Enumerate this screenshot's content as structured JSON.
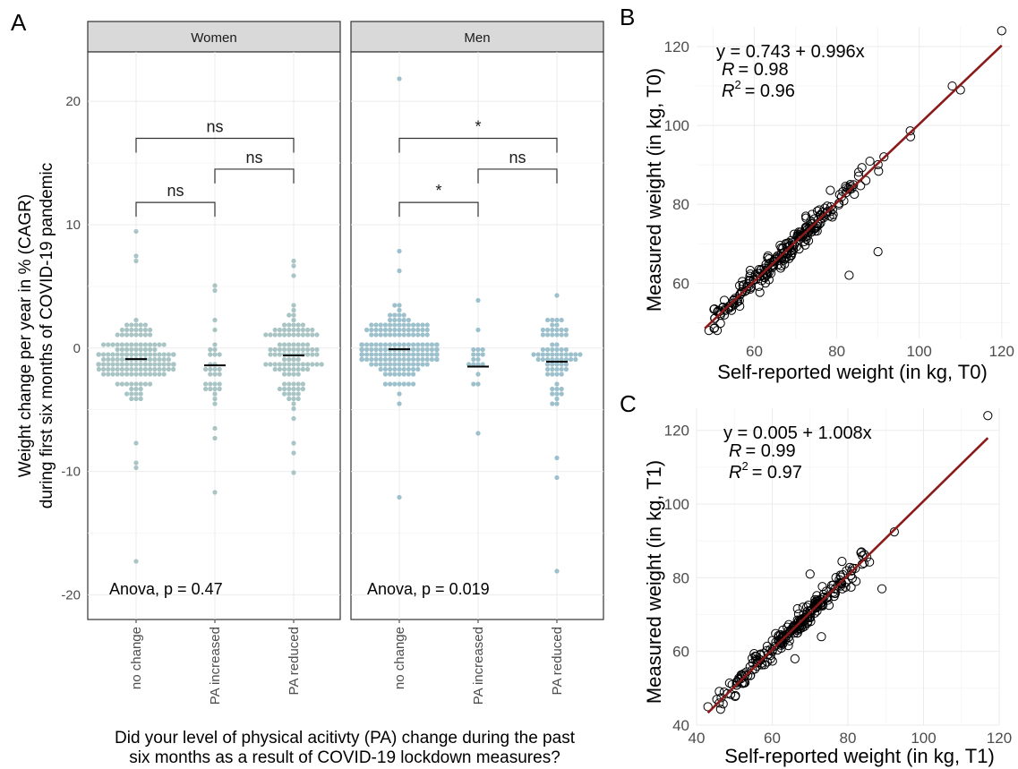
{
  "chart_data": [
    {
      "panel_label": "A",
      "type": "scatter",
      "subtype": "beeswarm",
      "facets": [
        "Women",
        "Men"
      ],
      "categories": [
        "no change",
        "PA increased",
        "PA reduced"
      ],
      "ylabel_line1": "Weight change per year in % (CAGR)",
      "ylabel_line2": "during first six months of COVID-19 pandemic",
      "xlabel_line1": "Did your level of physical acitivty (PA) change during the past",
      "xlabel_line2": "six months as a result of COVID-19 lockdown measures?",
      "ylim": [
        -22,
        24
      ],
      "yticks": [
        20,
        10,
        0,
        -10,
        -20
      ],
      "point_color": "#a9c4c4",
      "point_color_men": "#9cc0cc",
      "mean_line_color": "#000000",
      "panels": [
        {
          "facet": "Women",
          "anova": "Anova, p = 0.47",
          "means": [
            -0.9,
            -1.4,
            -0.6
          ],
          "brackets": [
            {
              "from": 0,
              "to": 2,
              "y": 17.0,
              "label": "ns"
            },
            {
              "from": 1,
              "to": 2,
              "y": 14.5,
              "label": "ns"
            },
            {
              "from": 0,
              "to": 1,
              "y": 11.8,
              "label": "ns"
            }
          ],
          "groups": [
            {
              "n": 150,
              "spread": 2.6,
              "outliers": [
                9.4,
                7.3,
                6.9,
                -7.9,
                -9.4,
                -9.8,
                -17.1
              ]
            },
            {
              "n": 28,
              "spread": 3.4,
              "outliers": [
                5.1,
                4.5,
                -6.6,
                -7.3,
                -11.5
              ]
            },
            {
              "n": 110,
              "spread": 3.3,
              "outliers": [
                6.9,
                6.5,
                6.0,
                -7.9,
                -8.6,
                -10.2
              ]
            }
          ]
        },
        {
          "facet": "Men",
          "anova": "Anova, p = 0.019",
          "means": [
            -0.1,
            -1.5,
            -1.1
          ],
          "brackets": [
            {
              "from": 0,
              "to": 2,
              "y": 17.0,
              "label": "*"
            },
            {
              "from": 1,
              "to": 2,
              "y": 14.5,
              "label": "ns"
            },
            {
              "from": 0,
              "to": 1,
              "y": 11.8,
              "label": "*"
            }
          ],
          "groups": [
            {
              "n": 190,
              "spread": 2.4,
              "outliers": [
                21.9,
                7.7,
                6.4,
                -12.0
              ]
            },
            {
              "n": 16,
              "spread": 2.0,
              "outliers": [
                3.9,
                -6.8
              ]
            },
            {
              "n": 70,
              "spread": 3.0,
              "outliers": [
                4.3,
                -9.1,
                -10.6,
                -18.0
              ]
            }
          ]
        }
      ]
    },
    {
      "panel_label": "B",
      "type": "scatter",
      "xlabel": "Self-reported weight (in kg, T0)",
      "ylabel": "Measured weight (in kg, T0)",
      "xlim": [
        46,
        122
      ],
      "ylim": [
        46,
        125
      ],
      "xticks": [
        60,
        80,
        100,
        120
      ],
      "yticks": [
        60,
        80,
        100,
        120
      ],
      "equation": "y = 0.743 + 0.996x",
      "r_symbol": "R",
      "r_value": "= 0.98",
      "r2_symbol": "R",
      "r2_sup": "2",
      "r2_value": "= 0.96",
      "intercept": 0.743,
      "slope": 0.996,
      "fit_range": [
        48,
        120
      ],
      "n": 240,
      "noise": 1.5,
      "outliers": [
        [
          83,
          62
        ],
        [
          90,
          68
        ],
        [
          120,
          124
        ],
        [
          108,
          110
        ],
        [
          110,
          109
        ],
        [
          49,
          48
        ],
        [
          51,
          48
        ]
      ],
      "line_color": "#8b1a1a",
      "seed": 7
    },
    {
      "panel_label": "C",
      "type": "scatter",
      "xlabel": "Self-reported weight (in kg, T1)",
      "ylabel": "Measured weight (in kg, T1)",
      "xlim": [
        40,
        120
      ],
      "ylim": [
        40,
        126
      ],
      "xticks": [
        40,
        60,
        80,
        100,
        120
      ],
      "yticks": [
        40,
        60,
        80,
        100,
        120
      ],
      "equation": "y = 0.005 + 1.008x",
      "r_symbol": "R",
      "r_value": "= 0.99",
      "r2_symbol": "R",
      "r2_sup": "2",
      "r2_value": "= 0.97",
      "intercept": 0.005,
      "slope": 1.008,
      "fit_range": [
        43,
        117
      ],
      "n": 240,
      "noise": 1.6,
      "outliers": [
        [
          117,
          124
        ],
        [
          43,
          45
        ],
        [
          46,
          46
        ],
        [
          70,
          81
        ],
        [
          89,
          77
        ],
        [
          73,
          64
        ],
        [
          66,
          58
        ]
      ],
      "line_color": "#8b1a1a",
      "seed": 13
    }
  ]
}
